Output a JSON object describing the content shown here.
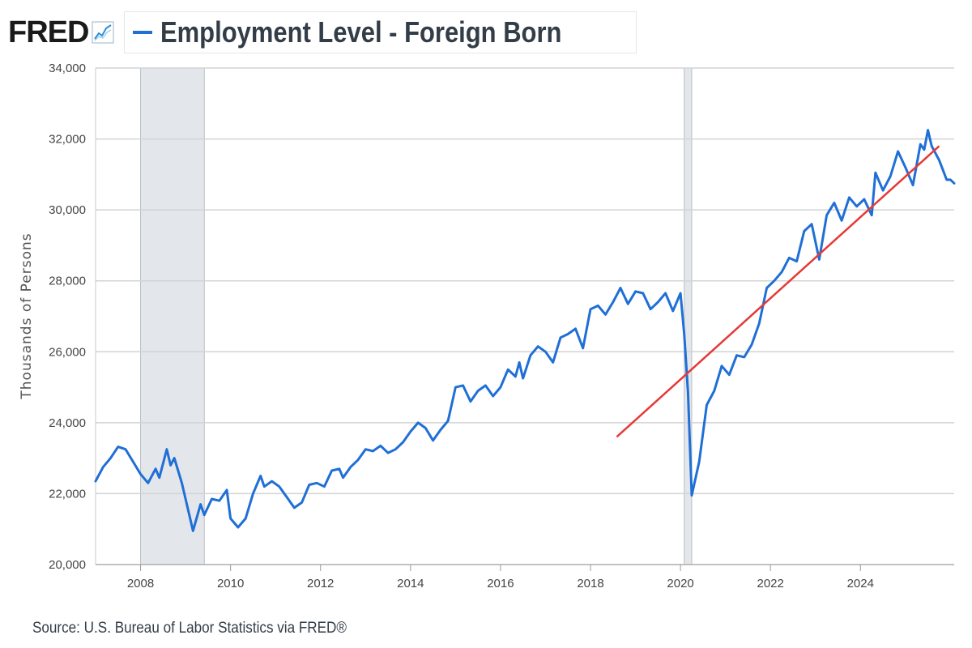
{
  "header": {
    "brand": "FRED",
    "brand_icon": "trend-chart-icon",
    "title": "Employment Level - Foreign Born"
  },
  "footer": {
    "source": "Source: U.S. Bureau of Labor Statistics via FRED®"
  },
  "colors": {
    "series": "#1f6fd6",
    "trendline": "#e53935",
    "recession": "#e3e6ea",
    "grid": "#d3d3d3"
  },
  "chart_data": {
    "type": "line",
    "title": "Employment Level - Foreign Born",
    "xlabel": "",
    "ylabel": "Thousands of Persons",
    "ylim": [
      20000,
      34000
    ],
    "xlim": [
      "2007-01",
      "2025-10"
    ],
    "yticks": [
      "20,000",
      "22,000",
      "24,000",
      "26,000",
      "28,000",
      "30,000",
      "32,000",
      "34,000"
    ],
    "xticks": [
      "2008",
      "2010",
      "2012",
      "2014",
      "2016",
      "2018",
      "2020",
      "2022",
      "2024"
    ],
    "grid": "horizontal",
    "recessions": [
      {
        "start": "2008-01",
        "end": "2009-06"
      },
      {
        "start": "2020-02",
        "end": "2020-04"
      }
    ],
    "annotations": [
      {
        "type": "trendline",
        "start": {
          "x": "2018-08",
          "y": 23600
        },
        "end": {
          "x": "2025-10",
          "y": 31800
        }
      }
    ],
    "series": [
      {
        "values": [
          [
            "2007-01",
            22350
          ],
          [
            "2007-03",
            22750
          ],
          [
            "2007-05",
            23000
          ],
          [
            "2007-07",
            23320
          ],
          [
            "2007-09",
            23250
          ],
          [
            "2007-11",
            22900
          ],
          [
            "2008-01",
            22550
          ],
          [
            "2008-03",
            22300
          ],
          [
            "2008-05",
            22700
          ],
          [
            "2008-06",
            22450
          ],
          [
            "2008-08",
            23250
          ],
          [
            "2008-09",
            22800
          ],
          [
            "2008-10",
            23000
          ],
          [
            "2008-12",
            22300
          ],
          [
            "2009-02",
            21400
          ],
          [
            "2009-03",
            20950
          ],
          [
            "2009-05",
            21700
          ],
          [
            "2009-06",
            21400
          ],
          [
            "2009-08",
            21850
          ],
          [
            "2009-10",
            21800
          ],
          [
            "2009-12",
            22100
          ],
          [
            "2010-01",
            21300
          ],
          [
            "2010-03",
            21050
          ],
          [
            "2010-05",
            21300
          ],
          [
            "2010-07",
            22000
          ],
          [
            "2010-09",
            22500
          ],
          [
            "2010-10",
            22200
          ],
          [
            "2010-12",
            22350
          ],
          [
            "2011-02",
            22200
          ],
          [
            "2011-04",
            21900
          ],
          [
            "2011-06",
            21600
          ],
          [
            "2011-08",
            21750
          ],
          [
            "2011-10",
            22250
          ],
          [
            "2011-12",
            22300
          ],
          [
            "2012-02",
            22200
          ],
          [
            "2012-04",
            22650
          ],
          [
            "2012-06",
            22700
          ],
          [
            "2012-07",
            22450
          ],
          [
            "2012-09",
            22750
          ],
          [
            "2012-11",
            22950
          ],
          [
            "2013-01",
            23250
          ],
          [
            "2013-03",
            23200
          ],
          [
            "2013-05",
            23350
          ],
          [
            "2013-07",
            23150
          ],
          [
            "2013-09",
            23250
          ],
          [
            "2013-11",
            23450
          ],
          [
            "2014-01",
            23750
          ],
          [
            "2014-03",
            24000
          ],
          [
            "2014-05",
            23850
          ],
          [
            "2014-07",
            23500
          ],
          [
            "2014-09",
            23800
          ],
          [
            "2014-11",
            24050
          ],
          [
            "2015-01",
            25000
          ],
          [
            "2015-03",
            25050
          ],
          [
            "2015-05",
            24600
          ],
          [
            "2015-07",
            24900
          ],
          [
            "2015-09",
            25050
          ],
          [
            "2015-11",
            24750
          ],
          [
            "2016-01",
            25000
          ],
          [
            "2016-03",
            25500
          ],
          [
            "2016-05",
            25300
          ],
          [
            "2016-06",
            25700
          ],
          [
            "2016-07",
            25250
          ],
          [
            "2016-09",
            25900
          ],
          [
            "2016-11",
            26150
          ],
          [
            "2017-01",
            26000
          ],
          [
            "2017-03",
            25700
          ],
          [
            "2017-05",
            26400
          ],
          [
            "2017-07",
            26500
          ],
          [
            "2017-09",
            26650
          ],
          [
            "2017-11",
            26100
          ],
          [
            "2018-01",
            27200
          ],
          [
            "2018-03",
            27300
          ],
          [
            "2018-05",
            27050
          ],
          [
            "2018-07",
            27400
          ],
          [
            "2018-09",
            27800
          ],
          [
            "2018-11",
            27350
          ],
          [
            "2019-01",
            27700
          ],
          [
            "2019-03",
            27650
          ],
          [
            "2019-05",
            27200
          ],
          [
            "2019-07",
            27400
          ],
          [
            "2019-09",
            27650
          ],
          [
            "2019-11",
            27150
          ],
          [
            "2020-01",
            27650
          ],
          [
            "2020-02",
            26500
          ],
          [
            "2020-03",
            24850
          ],
          [
            "2020-04",
            21950
          ],
          [
            "2020-06",
            22900
          ],
          [
            "2020-08",
            24500
          ],
          [
            "2020-10",
            24900
          ],
          [
            "2020-12",
            25600
          ],
          [
            "2021-02",
            25350
          ],
          [
            "2021-04",
            25900
          ],
          [
            "2021-06",
            25850
          ],
          [
            "2021-08",
            26200
          ],
          [
            "2021-10",
            26800
          ],
          [
            "2021-12",
            27800
          ],
          [
            "2022-02",
            28000
          ],
          [
            "2022-04",
            28250
          ],
          [
            "2022-06",
            28650
          ],
          [
            "2022-08",
            28550
          ],
          [
            "2022-10",
            29400
          ],
          [
            "2022-12",
            29600
          ],
          [
            "2023-02",
            28600
          ],
          [
            "2023-04",
            29850
          ],
          [
            "2023-06",
            30200
          ],
          [
            "2023-08",
            29700
          ],
          [
            "2023-10",
            30350
          ],
          [
            "2023-12",
            30100
          ],
          [
            "2024-02",
            30300
          ],
          [
            "2024-04",
            29850
          ],
          [
            "2024-05",
            31050
          ],
          [
            "2024-07",
            30550
          ],
          [
            "2024-09",
            30950
          ],
          [
            "2024-11",
            31650
          ],
          [
            "2025-01",
            31200
          ],
          [
            "2025-03",
            30700
          ],
          [
            "2025-05",
            31850
          ],
          [
            "2025-06",
            31700
          ],
          [
            "2025-07",
            32250
          ],
          [
            "2025-08",
            31800
          ],
          [
            "2025-10",
            31400
          ],
          [
            "2025-12",
            30850
          ],
          [
            "2026-01",
            30850
          ],
          [
            "2026-02",
            30750
          ]
        ]
      }
    ]
  }
}
